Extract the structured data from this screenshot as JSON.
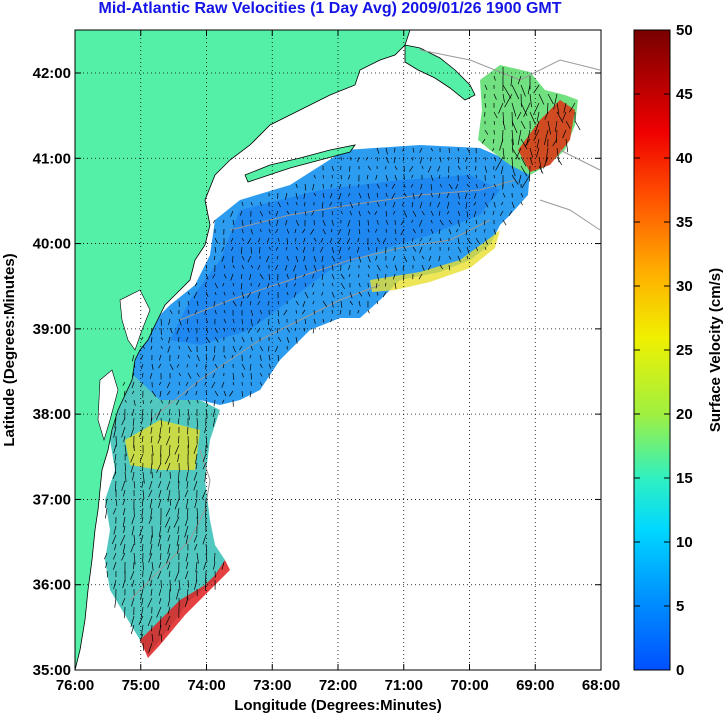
{
  "title": "Mid-Atlantic Raw Velocities (1 Day Avg) 2009/01/26 1900 GMT",
  "xlabel": "Longitude (Degrees:Minutes)",
  "ylabel": "Latitude (Degrees:Minutes)",
  "x_ticks": [
    "76:00",
    "75:00",
    "74:00",
    "73:00",
    "72:00",
    "71:00",
    "70:00",
    "69:00",
    "68:00"
  ],
  "y_ticks": [
    "42:00",
    "41:00",
    "40:00",
    "39:00",
    "38:00",
    "37:00",
    "36:00",
    "35:00"
  ],
  "colorbar": {
    "label": "Surface Velocity (cm/s)",
    "ticks": [
      "50",
      "45",
      "40",
      "35",
      "30",
      "25",
      "20",
      "15",
      "10",
      "5",
      "0"
    ]
  },
  "colors": {
    "land": "#55f0a8",
    "title": "#1414e6"
  }
}
